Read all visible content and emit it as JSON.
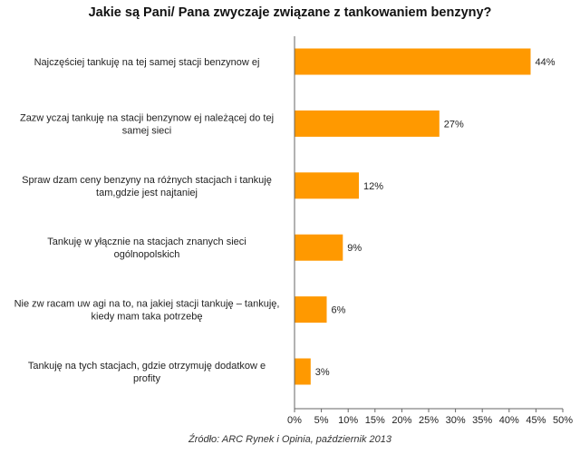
{
  "chart_data": {
    "type": "bar",
    "orientation": "horizontal",
    "title": "Jakie są Pani/ Pana zwyczaje związane z tankowaniem benzyny?",
    "categories": [
      [
        "Najczęściej tankuję na tej samej stacji benzynow ej"
      ],
      [
        "Zazw yczaj tankuję na stacji benzynow ej należącej do tej",
        "samej sieci"
      ],
      [
        "Spraw dzam ceny benzyny na różnych stacjach i tankuję",
        "tam,gdzie jest najtaniej"
      ],
      [
        "Tankuję w yłącznie na stacjach znanych sieci",
        "ogólnopolskich"
      ],
      [
        "Nie zw racam uw agi na to, na jakiej stacji tankuję – tankuję,",
        "kiedy mam taka potrzebę"
      ],
      [
        "Tankuję na tych stacjach, gdzie otrzymuję dodatkow e",
        "profity"
      ]
    ],
    "values": [
      44,
      27,
      12,
      9,
      6,
      3
    ],
    "data_labels": [
      "44%",
      "27%",
      "12%",
      "9%",
      "6%",
      "3%"
    ],
    "xlim": [
      0,
      50
    ],
    "xticks": [
      "0%",
      "5%",
      "10%",
      "15%",
      "20%",
      "25%",
      "30%",
      "35%",
      "40%",
      "45%",
      "50%"
    ],
    "bar_color": "#ff9900",
    "grid": false,
    "legend": "none"
  },
  "source": "Źródło: ARC Rynek i Opinia, październik 2013"
}
